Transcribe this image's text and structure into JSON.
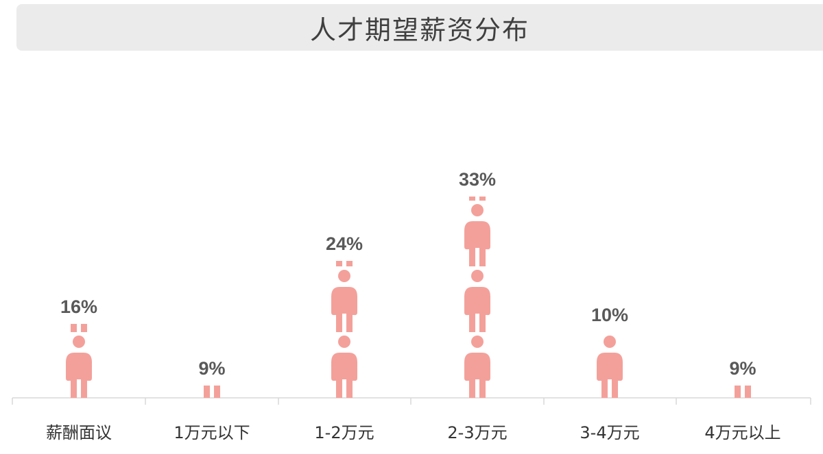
{
  "chart_data": {
    "type": "bar",
    "title": "人才期望薪资分布",
    "categories": [
      "薪酬面议",
      "1万元以下",
      "1-2万元",
      "2-3万元",
      "3-4万元",
      "4万元以上"
    ],
    "values": [
      16,
      9,
      24,
      33,
      10,
      9
    ],
    "value_labels": [
      "16%",
      "9%",
      "24%",
      "33%",
      "10%",
      "9%"
    ],
    "unit": "%",
    "xlabel": "",
    "ylabel": "",
    "ylim": [
      0,
      33
    ],
    "grid": false,
    "legend": "none",
    "mark": "person-icon pictograph (each full figure ≈ 10%)",
    "colors": {
      "figure": "#f4a09a",
      "label": "#595959",
      "tick_label": "#333333",
      "axis": "#d9d9d9",
      "title_bg": "#ebebeb"
    }
  }
}
